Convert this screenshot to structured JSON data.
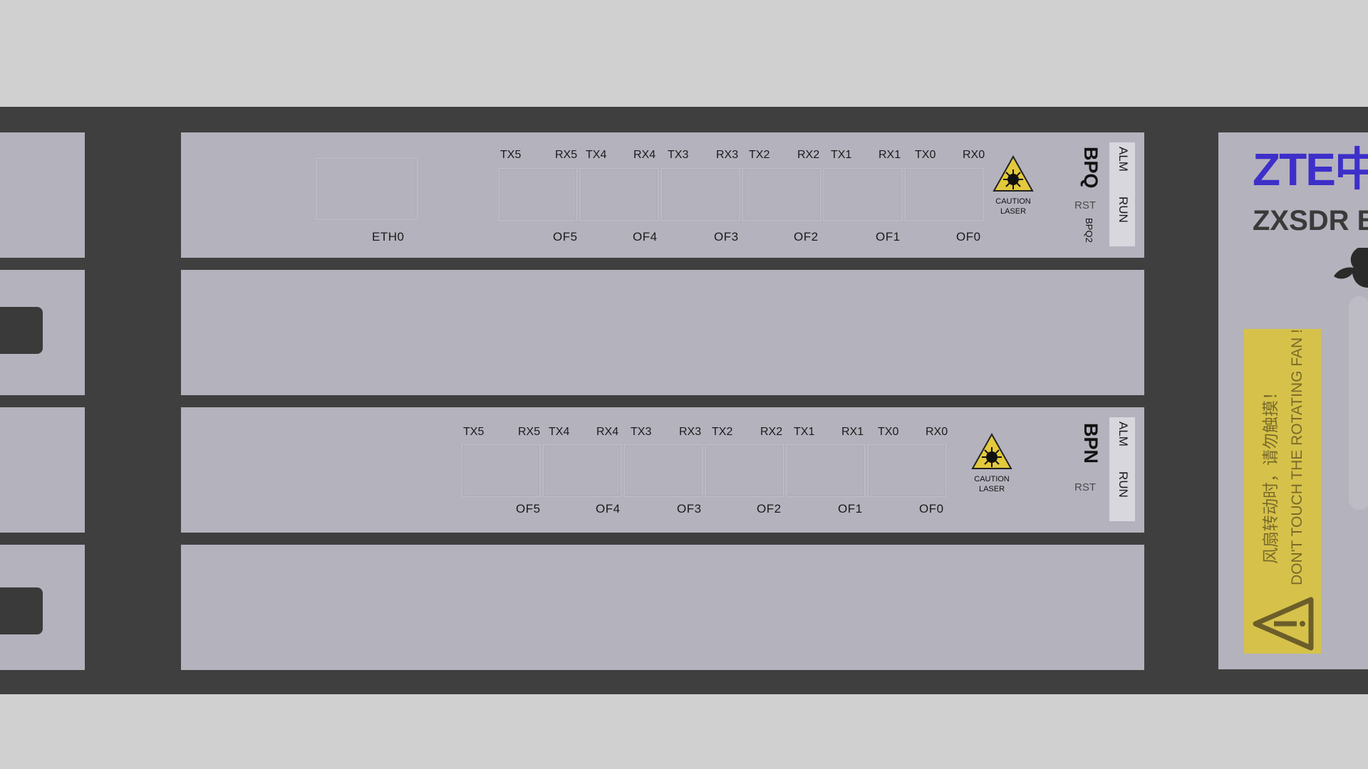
{
  "colors": {
    "background": "#d0d0d0",
    "chassis": "#3f3f3f",
    "panel": "#b4b2bd",
    "brand_logo": "#3d2fc9",
    "warning_sticker": "#d6c24a",
    "caution_triangle": "#e3c93c"
  },
  "board_bpq": {
    "name": "BPQ",
    "sub_name": "BPQ2",
    "leds": [
      "ALM",
      "RUN"
    ],
    "rst_label": "RST",
    "eth_label": "ETH0",
    "tx_rx_labels": [
      "TX5",
      "RX5",
      "TX4",
      "RX4",
      "TX3",
      "RX3",
      "TX2",
      "RX2",
      "TX1",
      "RX1",
      "TX0",
      "RX0"
    ],
    "port_labels": [
      "OF5",
      "OF4",
      "OF3",
      "OF2",
      "OF1",
      "OF0"
    ],
    "caution": {
      "line1": "CAUTION",
      "line2": "LASER",
      "icon": "laser-warning-icon"
    }
  },
  "board_bpn": {
    "name": "BPN",
    "leds": [
      "ALM",
      "RUN"
    ],
    "rst_label": "RST",
    "tx_rx_labels": [
      "TX5",
      "RX5",
      "TX4",
      "RX4",
      "TX3",
      "RX3",
      "TX2",
      "RX2",
      "TX1",
      "RX1",
      "TX0",
      "RX0"
    ],
    "port_labels": [
      "OF5",
      "OF4",
      "OF3",
      "OF2",
      "OF1",
      "OF0"
    ],
    "caution": {
      "line1": "CAUTION",
      "line2": "LASER",
      "icon": "laser-warning-icon"
    }
  },
  "brand": {
    "logo": "ZTE中兴",
    "model": "ZXSDR B",
    "fan_icon": "fan-icon",
    "warning_cn": "风扇转动时，请勿触摸！",
    "warning_en": "DON'T TOUCH THE ROTATING FAN !",
    "warning_icon": "warning-triangle-icon"
  }
}
